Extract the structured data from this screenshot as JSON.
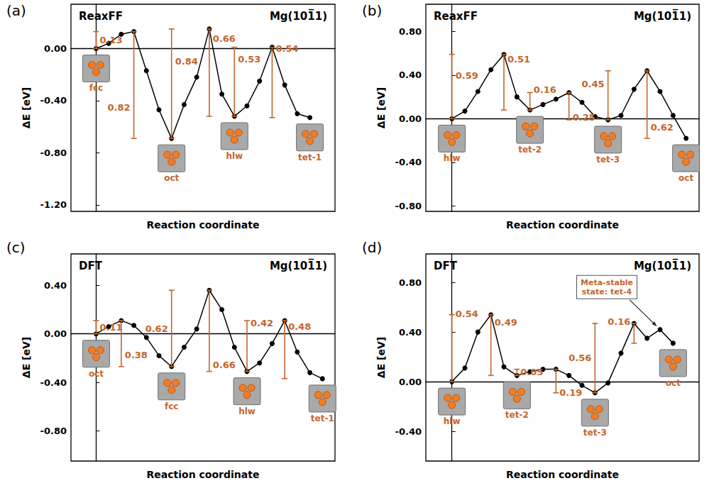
{
  "chart_data": [
    {
      "type": "line",
      "panel": "(a)",
      "title": "ReaxFF",
      "subtitle": "Mg(101̅1)",
      "x_label": "Reaction coordinate",
      "y_label": "ΔE [eV]",
      "tick_labels": "y",
      "grid": false,
      "color": "#000000",
      "marker": "circle",
      "values": [
        0.0,
        0.04,
        0.11,
        0.13,
        -0.17,
        -0.47,
        -0.69,
        -0.43,
        -0.22,
        0.15,
        -0.35,
        -0.52,
        -0.44,
        -0.25,
        0.01,
        -0.28,
        -0.5,
        -0.53
      ],
      "xlim": [
        -2,
        19
      ],
      "ylim": [
        -1.25,
        0.34
      ],
      "yticks": [
        {
          "value": -1.2,
          "label": "-1.20"
        },
        {
          "value": -0.8,
          "label": "-0.80"
        },
        {
          "value": -0.4,
          "label": "-0.40"
        },
        {
          "value": 0,
          "label": "0.00"
        }
      ],
      "barriers": [
        {
          "x": 0,
          "from": 0.0,
          "to": 0.13,
          "value": 0.13
        },
        {
          "x": 3,
          "from": -0.69,
          "to": 0.13,
          "value": 0.82
        },
        {
          "x": 6,
          "from": -0.69,
          "to": 0.15,
          "value": 0.84
        },
        {
          "x": 9,
          "from": -0.52,
          "to": 0.15,
          "value": 0.66
        },
        {
          "x": 11,
          "from": -0.52,
          "to": 0.01,
          "value": 0.53
        },
        {
          "x": 14,
          "from": -0.53,
          "to": 0.01,
          "value": 0.54
        }
      ],
      "states": [
        {
          "label": "fcc",
          "x": 0
        },
        {
          "label": "oct",
          "x": 6
        },
        {
          "label": "hlw",
          "x": 11
        },
        {
          "label": "tet-1",
          "x": 17
        }
      ]
    },
    {
      "type": "line",
      "panel": "(b)",
      "title": "ReaxFF",
      "subtitle": "Mg(101̅1)",
      "x_label": "Reaction coordinate",
      "y_label": "ΔE [eV]",
      "tick_labels": "y",
      "grid": false,
      "color": "#000000",
      "marker": "circle",
      "values": [
        0.0,
        0.07,
        0.25,
        0.45,
        0.59,
        0.2,
        0.08,
        0.13,
        0.18,
        0.24,
        0.15,
        0.02,
        -0.01,
        0.03,
        0.27,
        0.44,
        0.25,
        0.03,
        -0.18
      ],
      "xlim": [
        -2,
        19
      ],
      "ylim": [
        -0.85,
        1.05
      ],
      "yticks": [
        {
          "value": -0.8,
          "label": "-0.80"
        },
        {
          "value": -0.4,
          "label": "-0.40"
        },
        {
          "value": 0,
          "label": "0.00"
        },
        {
          "value": 0.4,
          "label": "0.40"
        },
        {
          "value": 0.8,
          "label": "0.80"
        }
      ],
      "barriers": [
        {
          "x": 0,
          "from": 0.0,
          "to": 0.59,
          "value": 0.59
        },
        {
          "x": 4,
          "from": 0.08,
          "to": 0.59,
          "value": 0.51
        },
        {
          "x": 6,
          "from": 0.08,
          "to": 0.24,
          "value": 0.16
        },
        {
          "x": 9,
          "from": -0.01,
          "to": 0.24,
          "value": 0.25
        },
        {
          "x": 12,
          "from": -0.01,
          "to": 0.44,
          "value": 0.45
        },
        {
          "x": 15,
          "from": -0.18,
          "to": 0.44,
          "value": 0.62
        }
      ],
      "states": [
        {
          "label": "hlw",
          "x": 0
        },
        {
          "label": "tet-2",
          "x": 6
        },
        {
          "label": "tet-3",
          "x": 12
        },
        {
          "label": "oct",
          "x": 18
        }
      ]
    },
    {
      "type": "line",
      "panel": "(c)",
      "title": "DFT",
      "subtitle": "Mg(101̅1)",
      "x_label": "Reaction coordinate",
      "y_label": "ΔE [eV]",
      "tick_labels": "y",
      "grid": false,
      "color": "#000000",
      "marker": "circle",
      "values": [
        0.0,
        0.06,
        0.11,
        0.07,
        -0.03,
        -0.18,
        -0.27,
        -0.11,
        0.04,
        0.36,
        0.2,
        -0.11,
        -0.31,
        -0.24,
        -0.08,
        0.11,
        -0.15,
        -0.32,
        -0.37
      ],
      "xlim": [
        -2,
        19
      ],
      "ylim": [
        -1.05,
        0.66
      ],
      "yticks": [
        {
          "value": -0.8,
          "label": "-0.80"
        },
        {
          "value": -0.4,
          "label": "-0.40"
        },
        {
          "value": 0,
          "label": "0.00"
        },
        {
          "value": 0.4,
          "label": "0.40"
        }
      ],
      "barriers": [
        {
          "x": 0,
          "from": 0.0,
          "to": 0.11,
          "value": 0.11
        },
        {
          "x": 2,
          "from": -0.27,
          "to": 0.11,
          "value": 0.38
        },
        {
          "x": 6,
          "from": -0.27,
          "to": 0.36,
          "value": 0.62
        },
        {
          "x": 9,
          "from": -0.31,
          "to": 0.36,
          "value": 0.66
        },
        {
          "x": 12,
          "from": -0.31,
          "to": 0.11,
          "value": 0.42
        },
        {
          "x": 15,
          "from": -0.37,
          "to": 0.11,
          "value": 0.48
        }
      ],
      "states": [
        {
          "label": "oct",
          "x": 0
        },
        {
          "label": "fcc",
          "x": 6
        },
        {
          "label": "hlw",
          "x": 12
        },
        {
          "label": "tet-1",
          "x": 18
        }
      ]
    },
    {
      "type": "line",
      "panel": "(d)",
      "title": "DFT",
      "subtitle": "Mg(101̅1)",
      "x_label": "Reaction coordinate",
      "y_label": "ΔE [eV]",
      "tick_labels": "y",
      "grid": false,
      "color": "#000000",
      "marker": "circle",
      "values": [
        0.0,
        0.11,
        0.4,
        0.54,
        0.12,
        0.05,
        0.08,
        0.1,
        0.1,
        0.05,
        -0.03,
        -0.09,
        -0.01,
        0.23,
        0.47,
        0.35,
        0.42,
        0.31
      ],
      "xlim": [
        -2,
        19
      ],
      "ylim": [
        -0.64,
        1.03
      ],
      "yticks": [
        {
          "value": -0.4,
          "label": "-0.40"
        },
        {
          "value": 0,
          "label": "0.00"
        },
        {
          "value": 0.4,
          "label": "0.40"
        },
        {
          "value": 0.8,
          "label": "0.80"
        }
      ],
      "barriers": [
        {
          "x": 0,
          "from": 0.0,
          "to": 0.54,
          "value": 0.54
        },
        {
          "x": 3,
          "from": 0.05,
          "to": 0.54,
          "value": 0.49
        },
        {
          "x": 5,
          "from": 0.05,
          "to": 0.1,
          "value": 0.05
        },
        {
          "x": 8,
          "from": -0.09,
          "to": 0.1,
          "value": 0.19
        },
        {
          "x": 11,
          "from": -0.09,
          "to": 0.47,
          "value": 0.56
        },
        {
          "x": 14,
          "from": 0.31,
          "to": 0.47,
          "value": 0.16
        }
      ],
      "states": [
        {
          "label": "hlw",
          "x": 0
        },
        {
          "label": "tet-2",
          "x": 5
        },
        {
          "label": "tet-3",
          "x": 11
        },
        {
          "label": "oct",
          "x": 17
        }
      ],
      "callout": {
        "text": "Meta-stable state: tet-4",
        "x": 16
      }
    }
  ]
}
